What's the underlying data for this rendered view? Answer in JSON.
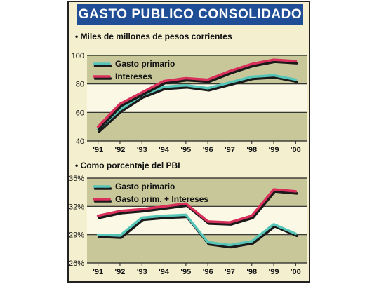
{
  "title": "GASTO PUBLICO CONSOLIDADO",
  "colors": {
    "panel_bg": "#f3efcf",
    "plot_band": "#c8c79a",
    "plot_light": "#fbf8e6",
    "series_teal": "#57c6b8",
    "series_red": "#d8305a",
    "shadow": "#1a1a1a",
    "title_bg": "#1f4e96"
  },
  "chart_data": [
    {
      "type": "line",
      "subtitle": "• Miles de millones de pesos corrientes",
      "categories": [
        "'91",
        "'92",
        "'93",
        "'94",
        "'95",
        "'96",
        "'97",
        "'98",
        "'99",
        "'00"
      ],
      "yticks": [
        "100",
        "80",
        "60",
        "40"
      ],
      "ylim": [
        40,
        100
      ],
      "grid": true,
      "legend_position": "top-left",
      "series": [
        {
          "name": "Gasto primario",
          "values": [
            48,
            62,
            72,
            78,
            79,
            77,
            81,
            85,
            86,
            83
          ]
        },
        {
          "name": "Intereses",
          "values": [
            50,
            66,
            74,
            82,
            84,
            83,
            89,
            94,
            97,
            96
          ]
        }
      ]
    },
    {
      "type": "line",
      "subtitle": "• Como porcentaje del PBI",
      "categories": [
        "'91",
        "'92",
        "'93",
        "'94",
        "'95",
        "'96",
        "'97",
        "'98",
        "'99",
        "'00"
      ],
      "yticks": [
        "35%",
        "32%",
        "29%",
        "26%"
      ],
      "ylim": [
        26,
        35
      ],
      "grid": true,
      "legend_position": "top-left",
      "series": [
        {
          "name": "Gasto primario",
          "values": [
            29.0,
            28.9,
            30.8,
            31.0,
            31.1,
            28.2,
            27.9,
            28.3,
            30.1,
            29.1
          ]
        },
        {
          "name": "Gasto prim. + Intereses",
          "values": [
            31.0,
            31.5,
            31.7,
            32.0,
            32.3,
            30.4,
            30.3,
            31.0,
            33.8,
            33.6
          ]
        }
      ]
    }
  ]
}
